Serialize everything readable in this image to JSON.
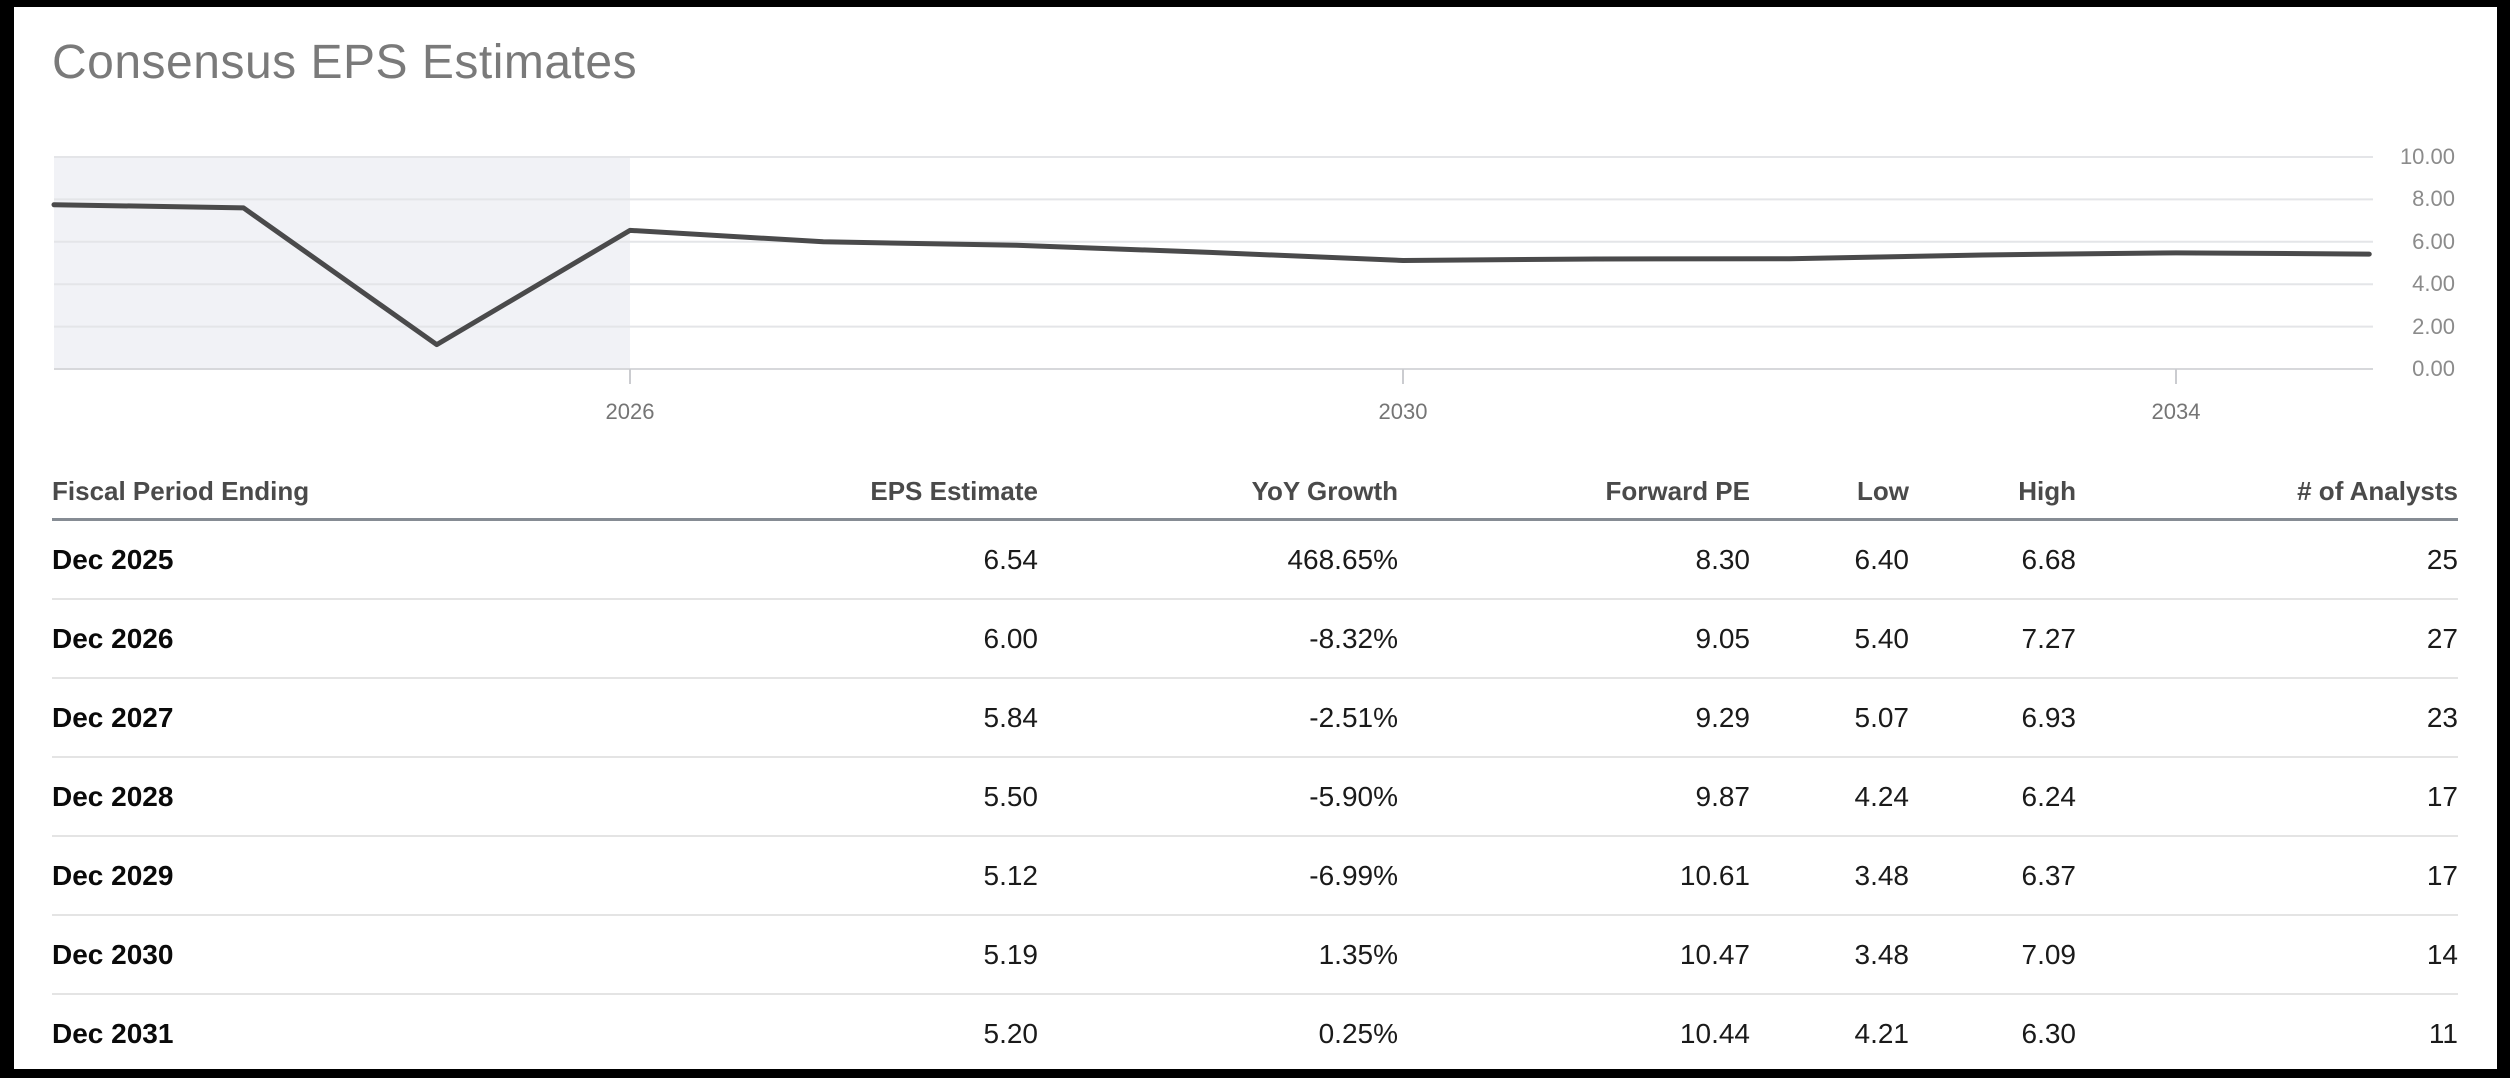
{
  "title": "Consensus EPS Estimates",
  "colors": {
    "frame": "#000000",
    "background": "#ffffff",
    "title_text": "#7a7a7a",
    "line": "#4a4a4b",
    "highlight_region": "#f1f2f6",
    "gridline": "#e4e5e8",
    "axis_line": "#d7d8db",
    "tick_mark": "#cbccd0",
    "axis_label": "#757575",
    "header_text": "#4a4a4a",
    "header_rule": "#868c94",
    "row_divider": "#e4e4e4",
    "row_label_text": "#0a0a0a",
    "cell_text": "#1a1a1a"
  },
  "chart_data": {
    "type": "line",
    "title": "Consensus EPS Estimates",
    "xlabel": "",
    "ylabel": "",
    "xlim": [
      2023,
      2035.2
    ],
    "ylim": [
      0,
      10
    ],
    "grid": true,
    "legend": false,
    "y_axis_side": "right",
    "y_ticks": [
      {
        "value": 10,
        "label": "10.00"
      },
      {
        "value": 8,
        "label": "8.00"
      },
      {
        "value": 6,
        "label": "6.00"
      },
      {
        "value": 4,
        "label": "4.00"
      },
      {
        "value": 2,
        "label": "2.00"
      },
      {
        "value": 0,
        "label": "0.00"
      }
    ],
    "x_ticks": [
      {
        "value": 2026,
        "label": "2026"
      },
      {
        "value": 2030,
        "label": "2030"
      },
      {
        "value": 2034,
        "label": "2034"
      }
    ],
    "highlight_region": {
      "from": 2023,
      "to": 2026
    },
    "series": [
      {
        "name": "Consensus EPS Estimate",
        "points": [
          {
            "x": 2023,
            "y": 7.75
          },
          {
            "x": 2024,
            "y": 7.6
          },
          {
            "x": 2025,
            "y": 1.15
          },
          {
            "x": 2026,
            "y": 6.54
          },
          {
            "x": 2027,
            "y": 6.0
          },
          {
            "x": 2028,
            "y": 5.84
          },
          {
            "x": 2029,
            "y": 5.5
          },
          {
            "x": 2030,
            "y": 5.12
          },
          {
            "x": 2031,
            "y": 5.19
          },
          {
            "x": 2032,
            "y": 5.2
          },
          {
            "x": 2033,
            "y": 5.38
          },
          {
            "x": 2034,
            "y": 5.48
          },
          {
            "x": 2035,
            "y": 5.42
          }
        ]
      }
    ]
  },
  "table": {
    "columns": [
      "Fiscal Period Ending",
      "EPS Estimate",
      "YoY Growth",
      "Forward PE",
      "Low",
      "High",
      "# of Analysts"
    ],
    "rows": [
      [
        "Dec 2025",
        "6.54",
        "468.65%",
        "8.30",
        "6.40",
        "6.68",
        "25"
      ],
      [
        "Dec 2026",
        "6.00",
        "-8.32%",
        "9.05",
        "5.40",
        "7.27",
        "27"
      ],
      [
        "Dec 2027",
        "5.84",
        "-2.51%",
        "9.29",
        "5.07",
        "6.93",
        "23"
      ],
      [
        "Dec 2028",
        "5.50",
        "-5.90%",
        "9.87",
        "4.24",
        "6.24",
        "17"
      ],
      [
        "Dec 2029",
        "5.12",
        "-6.99%",
        "10.61",
        "3.48",
        "6.37",
        "17"
      ],
      [
        "Dec 2030",
        "5.19",
        "1.35%",
        "10.47",
        "3.48",
        "7.09",
        "14"
      ],
      [
        "Dec 2031",
        "5.20",
        "0.25%",
        "10.44",
        "4.21",
        "6.30",
        "11"
      ]
    ]
  }
}
